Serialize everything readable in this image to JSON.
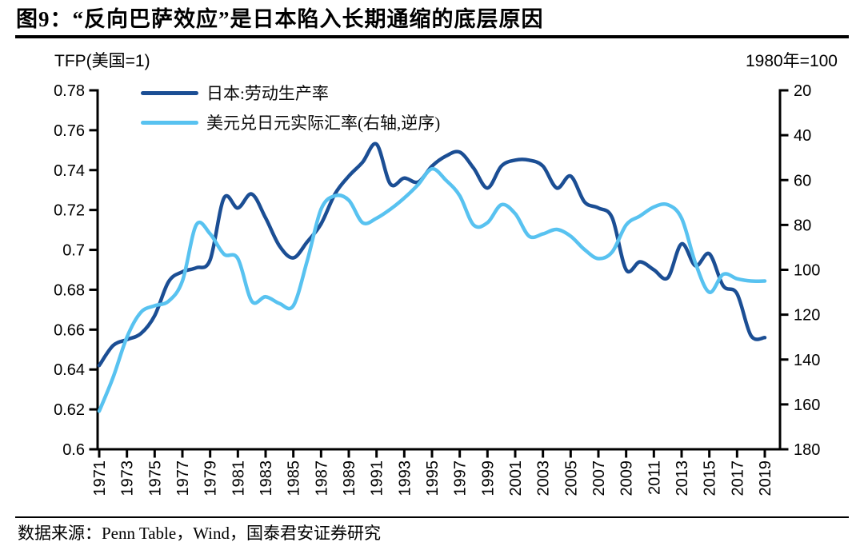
{
  "header": {
    "title": "图9：“反向巴萨效应”是日本陷入长期通缩的底层原因"
  },
  "footer": {
    "source": "数据来源：Penn Table，Wind，国泰君安证券研究"
  },
  "chart_data": {
    "type": "line",
    "title": "图9：“反向巴萨效应”是日本陷入长期通缩的底层原因",
    "grid": false,
    "legend_position": "top-left-inside",
    "x": [
      1971,
      1972,
      1973,
      1974,
      1975,
      1976,
      1977,
      1978,
      1979,
      1980,
      1981,
      1982,
      1983,
      1984,
      1985,
      1986,
      1987,
      1988,
      1989,
      1990,
      1991,
      1992,
      1993,
      1994,
      1995,
      1996,
      1997,
      1998,
      1999,
      2000,
      2001,
      2002,
      2003,
      2004,
      2005,
      2006,
      2007,
      2008,
      2009,
      2010,
      2011,
      2012,
      2013,
      2014,
      2015,
      2016,
      2017,
      2018,
      2019
    ],
    "x_tick_labels": [
      "1971",
      "1973",
      "1975",
      "1977",
      "1979",
      "1981",
      "1983",
      "1985",
      "1987",
      "1989",
      "1991",
      "1993",
      "1995",
      "1997",
      "1999",
      "2001",
      "2003",
      "2005",
      "2007",
      "2009",
      "2011",
      "2013",
      "2015",
      "2017",
      "2019"
    ],
    "left_axis": {
      "title": "TFP(美国=1)",
      "min": 0.6,
      "max": 0.78,
      "ticks": [
        0.78,
        0.76,
        0.74,
        0.72,
        0.7,
        0.68,
        0.66,
        0.64,
        0.62,
        0.6
      ],
      "tick_labels": [
        "0.78",
        "0.76",
        "0.74",
        "0.72",
        "0.7",
        "0.68",
        "0.66",
        "0.64",
        "0.62",
        "0.6"
      ]
    },
    "right_axis": {
      "title": "1980年=100",
      "min": 20,
      "max": 180,
      "inverted": true,
      "ticks": [
        20,
        40,
        60,
        80,
        100,
        120,
        140,
        160,
        180
      ],
      "tick_labels": [
        "20",
        "40",
        "60",
        "80",
        "100",
        "120",
        "140",
        "160",
        "180"
      ]
    },
    "legend": [
      {
        "label": "日本:劳动生产率",
        "color": "#1b4e94"
      },
      {
        "label": "美元兑日元实际汇率(右轴,逆序)",
        "color": "#58c2f0"
      }
    ],
    "series": [
      {
        "name": "日本:劳动生产率",
        "axis": "left",
        "color": "#1b4e94",
        "values": [
          0.642,
          0.652,
          0.655,
          0.658,
          0.667,
          0.684,
          0.689,
          0.691,
          0.695,
          0.726,
          0.721,
          0.728,
          0.716,
          0.702,
          0.696,
          0.704,
          0.713,
          0.728,
          0.737,
          0.744,
          0.753,
          0.733,
          0.736,
          0.734,
          0.742,
          0.747,
          0.749,
          0.741,
          0.731,
          0.742,
          0.745,
          0.745,
          0.742,
          0.731,
          0.737,
          0.724,
          0.721,
          0.716,
          0.69,
          0.694,
          0.69,
          0.686,
          0.703,
          0.692,
          0.698,
          0.682,
          0.678,
          0.657,
          0.656
        ]
      },
      {
        "name": "美元兑日元实际汇率(右轴,逆序)",
        "axis": "right",
        "color": "#58c2f0",
        "values": [
          163,
          148,
          130,
          119,
          116,
          114,
          105,
          80,
          84,
          93,
          95,
          114,
          112,
          115,
          116,
          96,
          73,
          67,
          69,
          79,
          77,
          73,
          68,
          62,
          55,
          60,
          67,
          80,
          79,
          71,
          75,
          85,
          84,
          82,
          85,
          91,
          95,
          92,
          80,
          76,
          72,
          71,
          77,
          97,
          110,
          102,
          104,
          105,
          105
        ]
      }
    ]
  }
}
